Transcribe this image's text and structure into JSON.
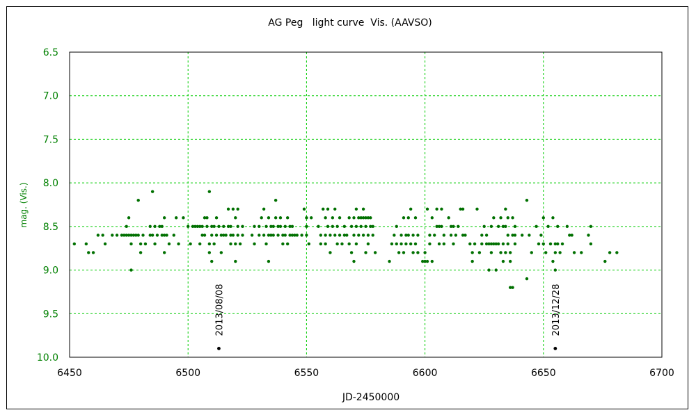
{
  "chart_data": {
    "type": "scatter",
    "title": "AG Peg   light curve  Vis. (AAVSO)",
    "xlabel": "JD-2450000",
    "ylabel": "mag. (Vis.)",
    "xlim": [
      6450,
      6700
    ],
    "ylim": [
      6.5,
      10.0
    ],
    "y_inverted": true,
    "x_ticks": [
      6450,
      6500,
      6550,
      6600,
      6650,
      6700
    ],
    "y_ticks": [
      "6.5",
      "7.0",
      "7.5",
      "8.0",
      "8.5",
      "9.0",
      "9.5",
      "10.0"
    ],
    "grid": true,
    "colors": {
      "data": "#007000",
      "grid": "#00cc00",
      "annotation": "#000000",
      "tick_y": "#008000"
    },
    "series": [
      {
        "points": [
          [
            6452,
            8.7
          ],
          [
            6457,
            8.7
          ],
          [
            6458,
            8.8
          ],
          [
            6460,
            8.8
          ],
          [
            6462,
            8.6
          ],
          [
            6464,
            8.6
          ],
          [
            6465,
            8.7
          ],
          [
            6468,
            8.6
          ],
          [
            6470,
            8.6
          ],
          [
            6472,
            8.6
          ],
          [
            6473,
            8.6
          ],
          [
            6474,
            8.6
          ],
          [
            6474,
            8.5
          ],
          [
            6475,
            8.6
          ],
          [
            6475,
            8.4
          ],
          [
            6476,
            8.6
          ],
          [
            6476,
            8.7
          ],
          [
            6476,
            9.0
          ],
          [
            6477,
            8.6
          ],
          [
            6478,
            8.6
          ],
          [
            6479,
            8.2
          ],
          [
            6479,
            8.6
          ],
          [
            6480,
            8.7
          ],
          [
            6480,
            8.8
          ],
          [
            6481,
            8.6
          ],
          [
            6482,
            8.7
          ],
          [
            6484,
            8.6
          ],
          [
            6484,
            8.5
          ],
          [
            6485,
            8.6
          ],
          [
            6485,
            8.1
          ],
          [
            6486,
            8.5
          ],
          [
            6486,
            8.7
          ],
          [
            6487,
            8.6
          ],
          [
            6488,
            8.5
          ],
          [
            6489,
            8.6
          ],
          [
            6489,
            8.5
          ],
          [
            6490,
            8.6
          ],
          [
            6490,
            8.4
          ],
          [
            6490,
            8.8
          ],
          [
            6491,
            8.6
          ],
          [
            6492,
            8.7
          ],
          [
            6494,
            8.6
          ],
          [
            6495,
            8.4
          ],
          [
            6496,
            8.7
          ],
          [
            6498,
            8.4
          ],
          [
            6500,
            8.5
          ],
          [
            6501,
            8.7
          ],
          [
            6502,
            8.5
          ],
          [
            6503,
            8.5
          ],
          [
            6504,
            8.5
          ],
          [
            6505,
            8.5
          ],
          [
            6505,
            8.7
          ],
          [
            6506,
            8.6
          ],
          [
            6506,
            8.5
          ],
          [
            6507,
            8.4
          ],
          [
            6507,
            8.6
          ],
          [
            6508,
            8.5
          ],
          [
            6508,
            8.4
          ],
          [
            6509,
            8.1
          ],
          [
            6509,
            8.7
          ],
          [
            6509,
            8.8
          ],
          [
            6510,
            8.5
          ],
          [
            6510,
            8.9
          ],
          [
            6510,
            8.6
          ],
          [
            6511,
            8.5
          ],
          [
            6511,
            8.7
          ],
          [
            6512,
            8.6
          ],
          [
            6512,
            8.4
          ],
          [
            6513,
            8.5
          ],
          [
            6514,
            8.6
          ],
          [
            6514,
            8.8
          ],
          [
            6515,
            8.5
          ],
          [
            6515,
            8.6
          ],
          [
            6516,
            8.6
          ],
          [
            6517,
            8.5
          ],
          [
            6517,
            8.3
          ],
          [
            6518,
            8.5
          ],
          [
            6518,
            8.6
          ],
          [
            6518,
            8.7
          ],
          [
            6519,
            8.3
          ],
          [
            6519,
            8.6
          ],
          [
            6520,
            8.4
          ],
          [
            6520,
            8.7
          ],
          [
            6520,
            8.9
          ],
          [
            6521,
            8.5
          ],
          [
            6521,
            8.6
          ],
          [
            6521,
            8.3
          ],
          [
            6522,
            8.7
          ],
          [
            6523,
            8.5
          ],
          [
            6523,
            8.6
          ],
          [
            6527,
            8.6
          ],
          [
            6528,
            8.5
          ],
          [
            6528,
            8.7
          ],
          [
            6530,
            8.6
          ],
          [
            6530,
            8.5
          ],
          [
            6531,
            8.4
          ],
          [
            6532,
            8.3
          ],
          [
            6532,
            8.6
          ],
          [
            6533,
            8.5
          ],
          [
            6533,
            8.7
          ],
          [
            6534,
            8.6
          ],
          [
            6534,
            8.9
          ],
          [
            6534,
            8.4
          ],
          [
            6535,
            8.5
          ],
          [
            6535,
            8.6
          ],
          [
            6536,
            8.5
          ],
          [
            6536,
            8.6
          ],
          [
            6537,
            8.2
          ],
          [
            6537,
            8.4
          ],
          [
            6538,
            8.5
          ],
          [
            6538,
            8.6
          ],
          [
            6539,
            8.5
          ],
          [
            6539,
            8.4
          ],
          [
            6540,
            8.6
          ],
          [
            6540,
            8.7
          ],
          [
            6541,
            8.6
          ],
          [
            6541,
            8.5
          ],
          [
            6542,
            8.7
          ],
          [
            6542,
            8.4
          ],
          [
            6543,
            8.6
          ],
          [
            6543,
            8.5
          ],
          [
            6544,
            8.5
          ],
          [
            6544,
            8.6
          ],
          [
            6545,
            8.6
          ],
          [
            6546,
            8.6
          ],
          [
            6548,
            8.6
          ],
          [
            6549,
            8.3
          ],
          [
            6550,
            8.6
          ],
          [
            6550,
            8.4
          ],
          [
            6550,
            8.5
          ],
          [
            6551,
            8.7
          ],
          [
            6552,
            8.4
          ],
          [
            6555,
            8.5
          ],
          [
            6556,
            8.7
          ],
          [
            6556,
            8.6
          ],
          [
            6557,
            8.3
          ],
          [
            6558,
            8.4
          ],
          [
            6558,
            8.6
          ],
          [
            6558,
            8.7
          ],
          [
            6559,
            8.3
          ],
          [
            6559,
            8.5
          ],
          [
            6560,
            8.6
          ],
          [
            6560,
            8.8
          ],
          [
            6561,
            8.5
          ],
          [
            6561,
            8.4
          ],
          [
            6562,
            8.6
          ],
          [
            6562,
            8.3
          ],
          [
            6563,
            8.7
          ],
          [
            6563,
            8.5
          ],
          [
            6564,
            8.6
          ],
          [
            6564,
            8.4
          ],
          [
            6565,
            8.7
          ],
          [
            6566,
            8.5
          ],
          [
            6566,
            8.6
          ],
          [
            6567,
            8.6
          ],
          [
            6568,
            8.4
          ],
          [
            6568,
            8.7
          ],
          [
            6569,
            8.5
          ],
          [
            6569,
            8.8
          ],
          [
            6570,
            8.4
          ],
          [
            6570,
            8.6
          ],
          [
            6570,
            8.9
          ],
          [
            6571,
            8.3
          ],
          [
            6571,
            8.5
          ],
          [
            6571,
            8.7
          ],
          [
            6572,
            8.4
          ],
          [
            6572,
            8.6
          ],
          [
            6573,
            8.4
          ],
          [
            6573,
            8.5
          ],
          [
            6574,
            8.3
          ],
          [
            6574,
            8.4
          ],
          [
            6574,
            8.6
          ],
          [
            6575,
            8.4
          ],
          [
            6575,
            8.5
          ],
          [
            6575,
            8.8
          ],
          [
            6576,
            8.4
          ],
          [
            6576,
            8.6
          ],
          [
            6576,
            8.7
          ],
          [
            6577,
            8.5
          ],
          [
            6577,
            8.4
          ],
          [
            6578,
            8.6
          ],
          [
            6578,
            8.5
          ],
          [
            6579,
            8.8
          ],
          [
            6585,
            8.9
          ],
          [
            6586,
            8.7
          ],
          [
            6587,
            8.6
          ],
          [
            6588,
            8.7
          ],
          [
            6588,
            8.5
          ],
          [
            6589,
            8.8
          ],
          [
            6590,
            8.6
          ],
          [
            6590,
            8.7
          ],
          [
            6591,
            8.4
          ],
          [
            6591,
            8.8
          ],
          [
            6592,
            8.7
          ],
          [
            6592,
            8.6
          ],
          [
            6593,
            8.6
          ],
          [
            6593,
            8.4
          ],
          [
            6594,
            8.7
          ],
          [
            6594,
            8.3
          ],
          [
            6595,
            8.8
          ],
          [
            6595,
            8.6
          ],
          [
            6596,
            8.7
          ],
          [
            6596,
            8.4
          ],
          [
            6597,
            8.8
          ],
          [
            6597,
            8.6
          ],
          [
            6599,
            8.9
          ],
          [
            6600,
            8.9
          ],
          [
            6600,
            8.8
          ],
          [
            6601,
            8.9
          ],
          [
            6601,
            8.3
          ],
          [
            6602,
            8.7
          ],
          [
            6602,
            8.6
          ],
          [
            6603,
            8.4
          ],
          [
            6603,
            8.9
          ],
          [
            6604,
            8.6
          ],
          [
            6605,
            8.5
          ],
          [
            6605,
            8.3
          ],
          [
            6606,
            8.7
          ],
          [
            6606,
            8.5
          ],
          [
            6607,
            8.5
          ],
          [
            6607,
            8.3
          ],
          [
            6608,
            8.6
          ],
          [
            6608,
            8.7
          ],
          [
            6610,
            8.4
          ],
          [
            6611,
            8.5
          ],
          [
            6611,
            8.6
          ],
          [
            6612,
            8.7
          ],
          [
            6612,
            8.5
          ],
          [
            6613,
            8.6
          ],
          [
            6614,
            8.5
          ],
          [
            6615,
            8.3
          ],
          [
            6616,
            8.3
          ],
          [
            6616,
            8.6
          ],
          [
            6617,
            8.6
          ],
          [
            6619,
            8.7
          ],
          [
            6620,
            8.8
          ],
          [
            6620,
            8.9
          ],
          [
            6621,
            8.7
          ],
          [
            6622,
            8.3
          ],
          [
            6623,
            8.8
          ],
          [
            6624,
            8.7
          ],
          [
            6624,
            8.6
          ],
          [
            6625,
            8.5
          ],
          [
            6626,
            8.7
          ],
          [
            6626,
            8.6
          ],
          [
            6627,
            8.7
          ],
          [
            6627,
            9.0
          ],
          [
            6628,
            8.7
          ],
          [
            6628,
            8.5
          ],
          [
            6628,
            8.8
          ],
          [
            6629,
            8.4
          ],
          [
            6629,
            8.7
          ],
          [
            6630,
            9.0
          ],
          [
            6630,
            8.7
          ],
          [
            6631,
            8.7
          ],
          [
            6631,
            8.5
          ],
          [
            6632,
            8.8
          ],
          [
            6632,
            8.4
          ],
          [
            6633,
            8.7
          ],
          [
            6633,
            8.5
          ],
          [
            6633,
            8.9
          ],
          [
            6634,
            8.8
          ],
          [
            6634,
            8.5
          ],
          [
            6634,
            8.3
          ],
          [
            6635,
            8.4
          ],
          [
            6635,
            8.7
          ],
          [
            6635,
            8.6
          ],
          [
            6636,
            8.8
          ],
          [
            6636,
            8.9
          ],
          [
            6636,
            9.2
          ],
          [
            6637,
            8.6
          ],
          [
            6637,
            9.2
          ],
          [
            6637,
            8.4
          ],
          [
            6638,
            8.5
          ],
          [
            6638,
            8.7
          ],
          [
            6638,
            8.6
          ],
          [
            6641,
            8.6
          ],
          [
            6643,
            8.2
          ],
          [
            6643,
            9.1
          ],
          [
            6644,
            8.6
          ],
          [
            6645,
            8.8
          ],
          [
            6647,
            8.5
          ],
          [
            6648,
            8.7
          ],
          [
            6649,
            8.6
          ],
          [
            6650,
            8.4
          ],
          [
            6650,
            8.7
          ],
          [
            6651,
            8.8
          ],
          [
            6652,
            8.5
          ],
          [
            6653,
            8.7
          ],
          [
            6654,
            8.4
          ],
          [
            6654,
            8.9
          ],
          [
            6655,
            8.7
          ],
          [
            6655,
            9.0
          ],
          [
            6655,
            8.8
          ],
          [
            6656,
            8.5
          ],
          [
            6656,
            8.7
          ],
          [
            6657,
            8.8
          ],
          [
            6658,
            8.7
          ],
          [
            6660,
            8.5
          ],
          [
            6661,
            8.6
          ],
          [
            6662,
            8.6
          ],
          [
            6663,
            8.8
          ],
          [
            6666,
            8.8
          ],
          [
            6669,
            8.6
          ],
          [
            6670,
            8.5
          ],
          [
            6670,
            8.7
          ],
          [
            6676,
            8.9
          ],
          [
            6678,
            8.8
          ],
          [
            6681,
            8.8
          ]
        ]
      }
    ],
    "annotations": [
      {
        "label": "2013/08/08",
        "x": 6513,
        "y": 9.9
      },
      {
        "label": "2013/12/28",
        "x": 6655,
        "y": 9.9
      }
    ]
  }
}
